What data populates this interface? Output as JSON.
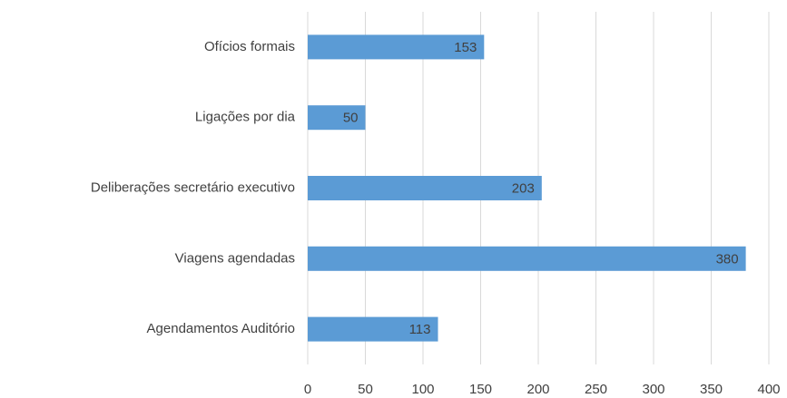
{
  "chart_data": {
    "type": "bar",
    "orientation": "horizontal",
    "categories": [
      "Ofícios formais",
      "Ligações por dia",
      "Deliberações secretário executivo",
      "Viagens agendadas",
      "Agendamentos Auditório"
    ],
    "values": [
      153,
      50,
      203,
      380,
      113
    ],
    "color": "#5b9bd5",
    "xlim": [
      0,
      400
    ],
    "xticks": [
      0,
      50,
      100,
      150,
      200,
      250,
      300,
      350,
      400
    ],
    "grid": true
  }
}
